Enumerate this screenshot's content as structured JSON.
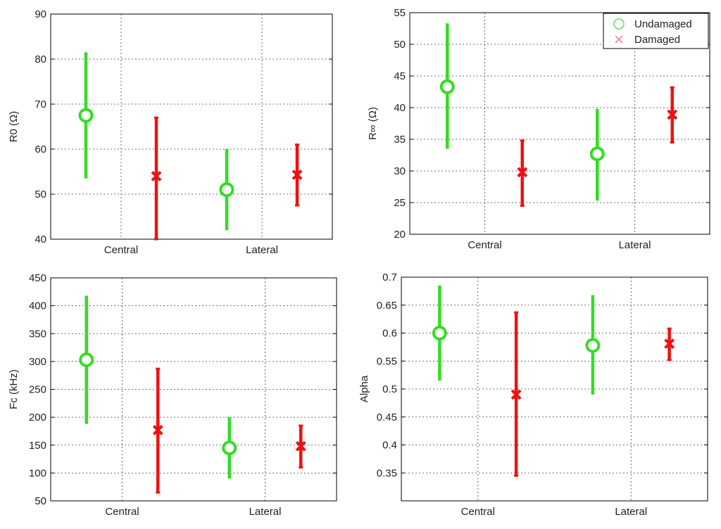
{
  "figure": {
    "categories": [
      "Central",
      "Lateral"
    ],
    "colors": {
      "undamaged": "#33dd22",
      "damaged": "#ee1111",
      "grid": "#444444",
      "axis": "#000000"
    },
    "legend": {
      "location": "top-right",
      "entries": [
        {
          "label": "Undamaged",
          "marker": "circle"
        },
        {
          "label": "Damaged",
          "marker": "x"
        }
      ]
    }
  },
  "chart_data": [
    {
      "type": "errorbar",
      "ylabel": "R0 (Ω)",
      "categories": [
        "Central",
        "Lateral"
      ],
      "ylim": [
        40,
        90
      ],
      "yticks": [
        "40",
        "50",
        "60",
        "70",
        "80",
        "90"
      ],
      "grid": true,
      "series": [
        {
          "name": "Undamaged",
          "points": [
            {
              "category": "Central",
              "mean": 67.5,
              "low": 53.5,
              "high": 81.5
            },
            {
              "category": "Lateral",
              "mean": 51,
              "low": 42,
              "high": 60
            }
          ]
        },
        {
          "name": "Damaged",
          "points": [
            {
              "category": "Central",
              "mean": 54,
              "low": 40,
              "high": 67
            },
            {
              "category": "Lateral",
              "mean": 54.3,
              "low": 47.5,
              "high": 61
            }
          ]
        }
      ]
    },
    {
      "type": "errorbar",
      "ylabel": "R∞ (Ω)",
      "categories": [
        "Central",
        "Lateral"
      ],
      "ylim": [
        20,
        55
      ],
      "yticks": [
        "20",
        "25",
        "30",
        "35",
        "40",
        "45",
        "50",
        "55"
      ],
      "grid": true,
      "legend": true,
      "series": [
        {
          "name": "Undamaged",
          "points": [
            {
              "category": "Central",
              "mean": 43.3,
              "low": 33.5,
              "high": 53.3
            },
            {
              "category": "Lateral",
              "mean": 32.7,
              "low": 25.3,
              "high": 39.8
            }
          ]
        },
        {
          "name": "Damaged",
          "points": [
            {
              "category": "Central",
              "mean": 29.8,
              "low": 24.5,
              "high": 34.8
            },
            {
              "category": "Lateral",
              "mean": 38.9,
              "low": 34.5,
              "high": 43.2
            }
          ]
        }
      ]
    },
    {
      "type": "errorbar",
      "ylabel": "Fc (kHz)",
      "categories": [
        "Central",
        "Lateral"
      ],
      "ylim": [
        50,
        450
      ],
      "yticks": [
        "50",
        "100",
        "150",
        "200",
        "250",
        "300",
        "350",
        "400",
        "450"
      ],
      "grid": true,
      "series": [
        {
          "name": "Undamaged",
          "points": [
            {
              "category": "Central",
              "mean": 303,
              "low": 188,
              "high": 418
            },
            {
              "category": "Lateral",
              "mean": 145,
              "low": 90,
              "high": 200
            }
          ]
        },
        {
          "name": "Damaged",
          "points": [
            {
              "category": "Central",
              "mean": 177,
              "low": 65,
              "high": 287
            },
            {
              "category": "Lateral",
              "mean": 148,
              "low": 110,
              "high": 185
            }
          ]
        }
      ]
    },
    {
      "type": "errorbar",
      "ylabel": "Alpha",
      "categories": [
        "Central",
        "Lateral"
      ],
      "ylim": [
        0.3,
        0.7
      ],
      "yticks": [
        "0.35",
        "0.4",
        "0.45",
        "0.5",
        "0.55",
        "0.6",
        "0.65",
        "0.7"
      ],
      "grid": true,
      "series": [
        {
          "name": "Undamaged",
          "points": [
            {
              "category": "Central",
              "mean": 0.6,
              "low": 0.515,
              "high": 0.685
            },
            {
              "category": "Lateral",
              "mean": 0.578,
              "low": 0.49,
              "high": 0.668
            }
          ]
        },
        {
          "name": "Damaged",
          "points": [
            {
              "category": "Central",
              "mean": 0.49,
              "low": 0.345,
              "high": 0.637
            },
            {
              "category": "Lateral",
              "mean": 0.581,
              "low": 0.552,
              "high": 0.608
            }
          ]
        }
      ]
    }
  ]
}
